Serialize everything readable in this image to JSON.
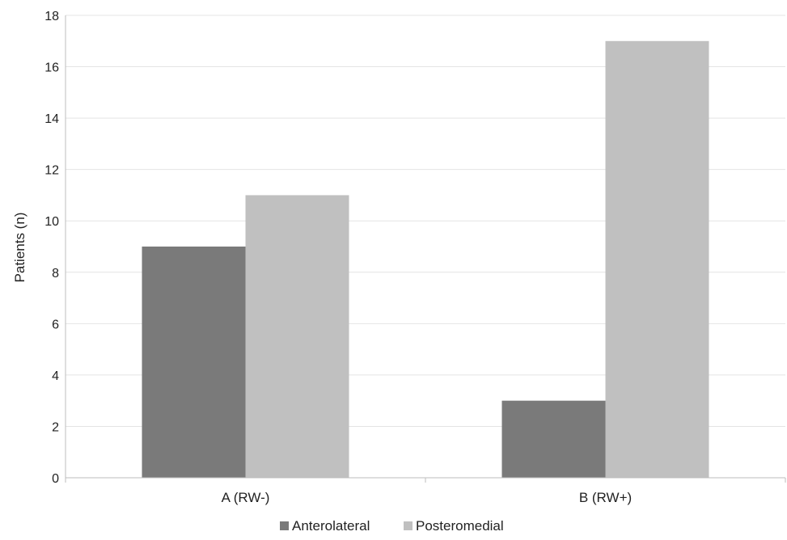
{
  "chart_data": {
    "type": "bar",
    "title": "",
    "xlabel": "",
    "ylabel": "Patients (n)",
    "categories": [
      "A (RW-)",
      "B (RW+)"
    ],
    "series": [
      {
        "name": "Anterolateral",
        "values": [
          9,
          3
        ],
        "color": "#7a7a7a"
      },
      {
        "name": "Posteromedial",
        "values": [
          11,
          17
        ],
        "color": "#c0c0c0"
      }
    ],
    "ylim": [
      0,
      18
    ],
    "yticks": [
      0,
      2,
      4,
      6,
      8,
      10,
      12,
      14,
      16,
      18
    ],
    "grid": true,
    "legend": "bottom-center"
  }
}
